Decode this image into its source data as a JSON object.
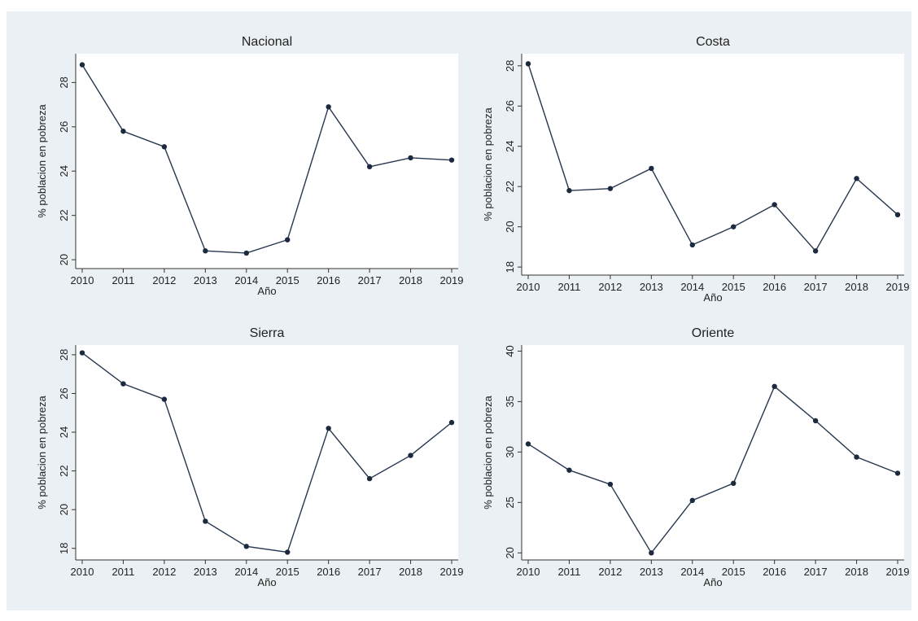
{
  "chart_data": [
    {
      "type": "line",
      "title": "Nacional",
      "xlabel": "Año",
      "ylabel": "% poblacion en pobreza",
      "x": [
        2010,
        2011,
        2012,
        2013,
        2014,
        2015,
        2016,
        2017,
        2018,
        2019
      ],
      "y": [
        28.8,
        25.8,
        25.1,
        20.4,
        20.3,
        20.9,
        26.9,
        24.2,
        24.6,
        24.5
      ],
      "ylim": [
        19.6,
        29.3
      ],
      "yticks": [
        20,
        22,
        24,
        26,
        28
      ],
      "grid": true,
      "legend": "none"
    },
    {
      "type": "line",
      "title": "Costa",
      "xlabel": "Año",
      "ylabel": "% poblacion en pobreza",
      "x": [
        2010,
        2011,
        2012,
        2013,
        2014,
        2015,
        2016,
        2017,
        2018,
        2019
      ],
      "y": [
        28.1,
        21.8,
        21.9,
        22.9,
        19.1,
        20.0,
        21.1,
        18.8,
        22.4,
        20.6
      ],
      "ylim": [
        17.6,
        28.6
      ],
      "yticks": [
        18,
        20,
        22,
        24,
        26,
        28
      ],
      "grid": true,
      "legend": "none"
    },
    {
      "type": "line",
      "title": "Sierra",
      "xlabel": "Año",
      "ylabel": "% poblacion en pobreza",
      "x": [
        2010,
        2011,
        2012,
        2013,
        2014,
        2015,
        2016,
        2017,
        2018,
        2019
      ],
      "y": [
        28.1,
        26.5,
        25.7,
        19.4,
        18.1,
        17.8,
        24.2,
        21.6,
        22.8,
        24.5
      ],
      "ylim": [
        17.4,
        28.5
      ],
      "yticks": [
        18,
        20,
        22,
        24,
        26,
        28
      ],
      "grid": true,
      "legend": "none"
    },
    {
      "type": "line",
      "title": "Oriente",
      "xlabel": "Año",
      "ylabel": "% poblacion en pobreza",
      "x": [
        2010,
        2011,
        2012,
        2013,
        2014,
        2015,
        2016,
        2017,
        2018,
        2019
      ],
      "y": [
        30.8,
        28.2,
        26.8,
        20.0,
        25.2,
        26.9,
        36.5,
        33.1,
        29.5,
        27.9
      ],
      "ylim": [
        19.3,
        40.6
      ],
      "yticks": [
        20,
        25,
        30,
        35,
        40
      ],
      "grid": true,
      "legend": "none"
    }
  ]
}
